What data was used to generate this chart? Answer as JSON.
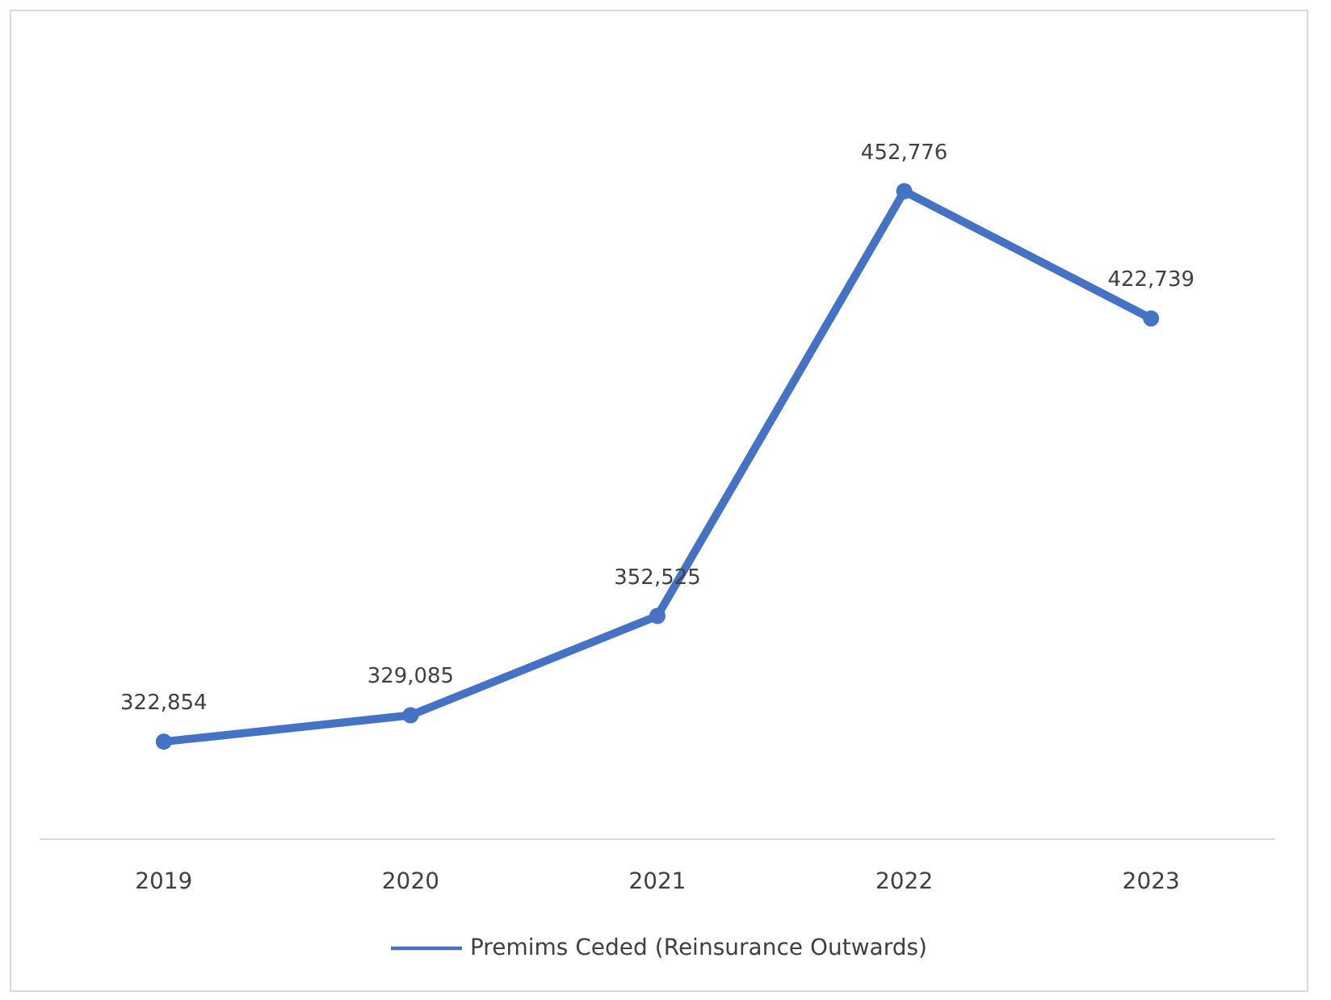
{
  "chart_data": {
    "type": "line",
    "categories": [
      "2019",
      "2020",
      "2021",
      "2022",
      "2023"
    ],
    "series": [
      {
        "name": "Premims Ceded (Reinsurance Outwards)",
        "color": "#4472c4",
        "values": [
          322854,
          329085,
          352525,
          452776,
          422739
        ],
        "value_labels": [
          "322,854",
          "329,085",
          "352,525",
          "452,776",
          "422,739"
        ]
      }
    ],
    "marker": "circle",
    "line_style": "solid",
    "grid": false,
    "legend": "bottom",
    "tick_labels": "x"
  }
}
